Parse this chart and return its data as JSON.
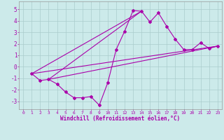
{
  "xlabel": "Windchill (Refroidissement éolien,°C)",
  "ylabel": "",
  "bg_color": "#cceaea",
  "line_color": "#aa00aa",
  "grid_color": "#aacccc",
  "xlim": [
    -0.5,
    23.5
  ],
  "ylim": [
    -3.7,
    5.7
  ],
  "yticks": [
    -3,
    -2,
    -1,
    0,
    1,
    2,
    3,
    4,
    5
  ],
  "xticks": [
    0,
    1,
    2,
    3,
    4,
    5,
    6,
    7,
    8,
    9,
    10,
    11,
    12,
    13,
    14,
    15,
    16,
    17,
    18,
    19,
    20,
    21,
    22,
    23
  ],
  "scatter_x": [
    1,
    2,
    3,
    4,
    5,
    6,
    7,
    8,
    9,
    10,
    11,
    12,
    13,
    14,
    15,
    16,
    17,
    18,
    19,
    20,
    21,
    22,
    23
  ],
  "scatter_y": [
    -0.6,
    -1.2,
    -1.1,
    -1.5,
    -2.2,
    -2.7,
    -2.7,
    -2.6,
    -3.35,
    -1.4,
    1.5,
    3.1,
    4.9,
    4.85,
    3.9,
    4.7,
    3.5,
    2.4,
    1.5,
    1.5,
    2.1,
    1.6,
    1.8
  ],
  "line1_x": [
    1,
    23
  ],
  "line1_y": [
    -0.6,
    1.8
  ],
  "line2_x": [
    3,
    14
  ],
  "line2_y": [
    -1.1,
    4.85
  ],
  "line3_x": [
    3,
    23
  ],
  "line3_y": [
    -1.1,
    1.8
  ],
  "line4_x": [
    1,
    14
  ],
  "line4_y": [
    -0.6,
    4.85
  ]
}
